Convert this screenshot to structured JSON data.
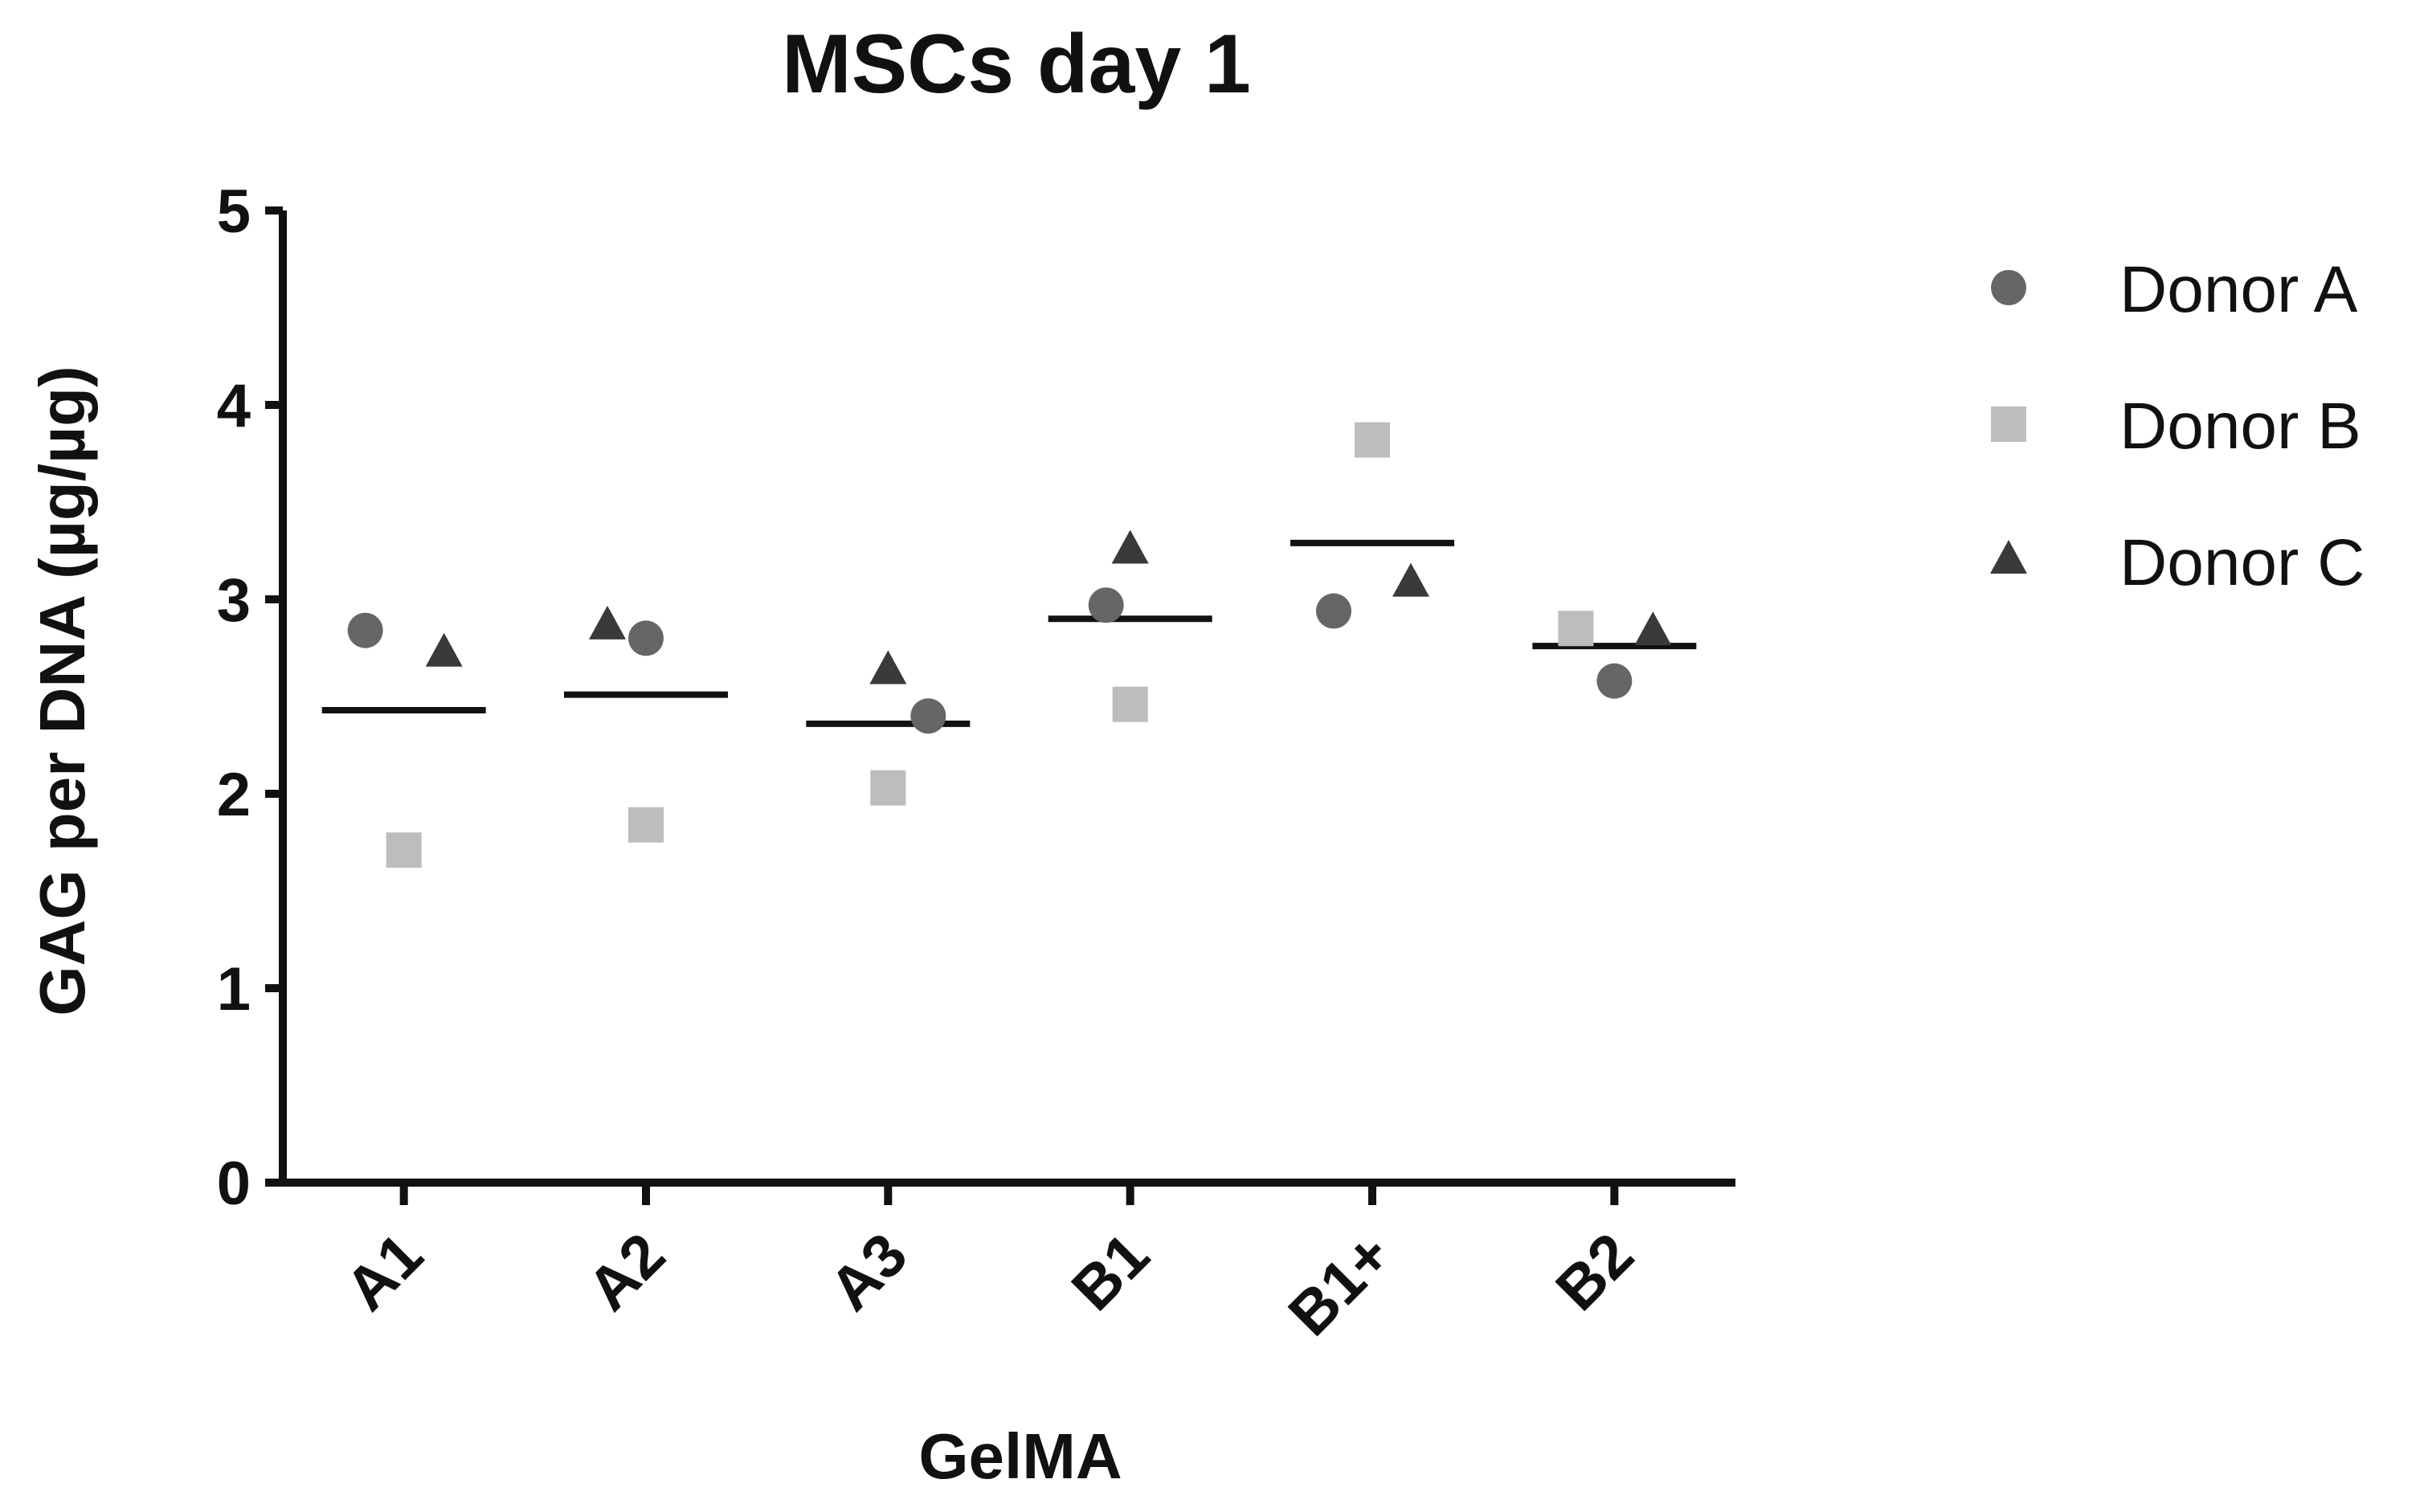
{
  "colors": {
    "donor_a": "#666666",
    "donor_b": "#bdbdbd",
    "donor_c": "#3a3a3a",
    "axis": "#111111",
    "mean_line": "#111111"
  },
  "chart_data": {
    "type": "scatter",
    "title": "MSCs day 1",
    "xlabel": "GelMA",
    "ylabel": "GAG per DNA (µg/µg)",
    "categories": [
      "A1",
      "A2",
      "A3",
      "B1",
      "B1+",
      "B2"
    ],
    "ylim": [
      0,
      5
    ],
    "yticks": [
      0,
      1,
      2,
      3,
      4,
      5
    ],
    "grid": false,
    "legend_position": "right",
    "series": [
      {
        "name": "Donor A",
        "marker": "circle",
        "values": [
          2.84,
          2.8,
          2.4,
          2.97,
          2.94,
          2.58
        ]
      },
      {
        "name": "Donor B",
        "marker": "square",
        "values": [
          1.71,
          1.84,
          2.03,
          2.46,
          3.82,
          2.85
        ]
      },
      {
        "name": "Donor C",
        "marker": "triangle",
        "values": [
          2.72,
          2.86,
          2.63,
          3.25,
          3.08,
          2.83
        ]
      }
    ],
    "means": [
      2.43,
      2.51,
      2.36,
      2.9,
      3.29,
      2.76
    ]
  }
}
